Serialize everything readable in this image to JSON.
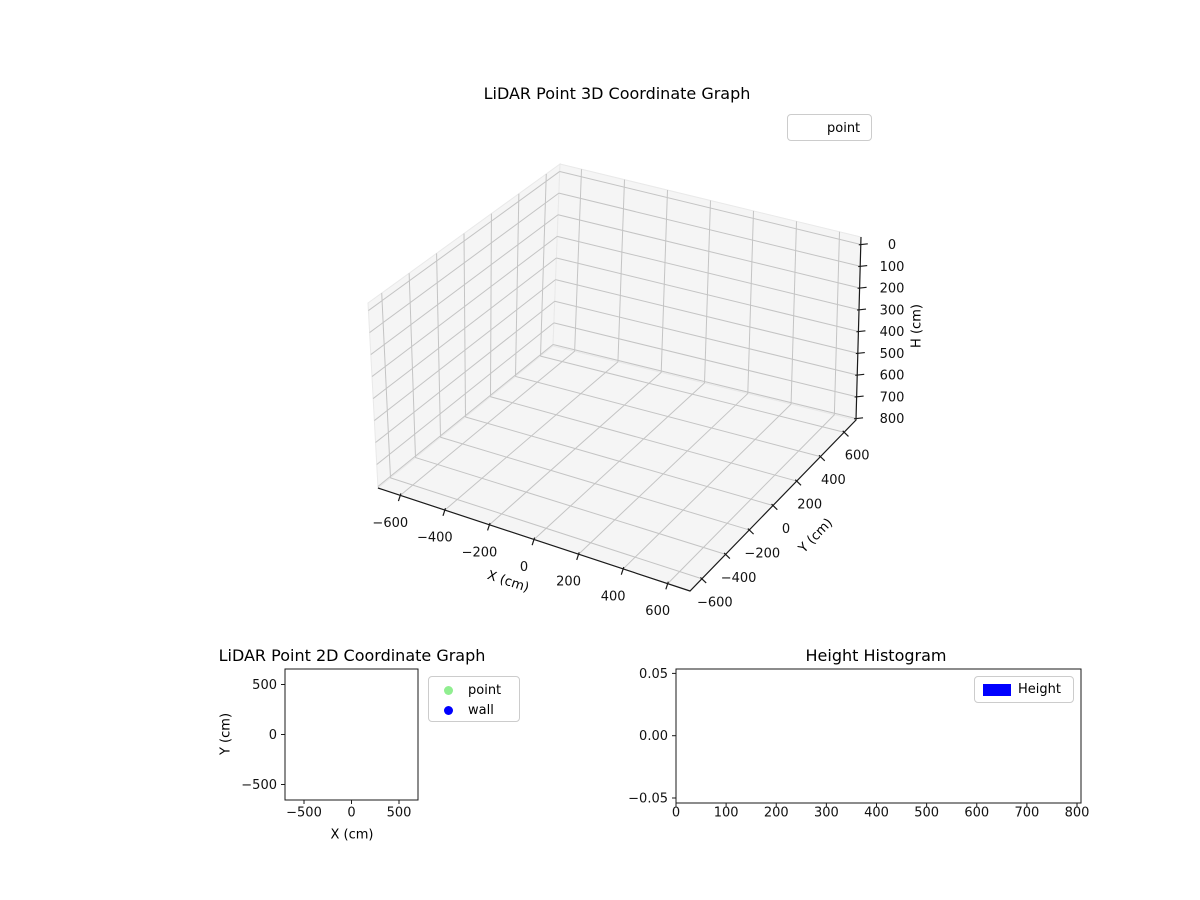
{
  "figure": {
    "background": "#ffffff"
  },
  "colors": {
    "point_marker": "#90ee90",
    "wall_marker": "#0000ff",
    "height_bar": "#0000ff",
    "pane_fill": "#f5f5f5",
    "grid_line": "#c4c4c4",
    "spine": "#1a1a1a"
  },
  "chart_data": [
    {
      "type": "scatter",
      "projection": "3d",
      "title": "LiDAR Point 3D Coordinate Graph",
      "xlabel": "X (cm)",
      "ylabel": "Y (cm)",
      "zlabel": "H (cm)",
      "xlim": [
        -700,
        700
      ],
      "ylim": [
        -700,
        700
      ],
      "zlim": [
        0,
        800
      ],
      "z_axis_inverted": true,
      "grid": true,
      "x_tick_labels": [
        "−600",
        "−400",
        "−200",
        "0",
        "200",
        "400",
        "600"
      ],
      "y_tick_labels": [
        "600",
        "400",
        "200",
        "0",
        "−200",
        "−400",
        "−600"
      ],
      "z_tick_labels": [
        "0",
        "100",
        "200",
        "300",
        "400",
        "500",
        "600",
        "700",
        "800"
      ],
      "legend": [
        {
          "label": "point",
          "marker_visible": false
        }
      ],
      "series": [
        {
          "name": "point",
          "points": []
        }
      ]
    },
    {
      "type": "scatter",
      "projection": "2d",
      "title": "LiDAR Point 2D Coordinate Graph",
      "xlabel": "X (cm)",
      "ylabel": "Y (cm)",
      "xlim": [
        -700,
        700
      ],
      "ylim": [
        -650,
        650
      ],
      "grid": false,
      "x_tick_labels": [
        "−500",
        "0",
        "500"
      ],
      "y_tick_labels": [
        "500",
        "0",
        "−500"
      ],
      "legend": [
        {
          "label": "point",
          "color": "#90ee90"
        },
        {
          "label": "wall",
          "color": "#0000ff"
        }
      ],
      "series": [
        {
          "name": "point",
          "color": "#90ee90",
          "points": []
        },
        {
          "name": "wall",
          "color": "#0000ff",
          "points": []
        }
      ]
    },
    {
      "type": "bar",
      "projection": "2d",
      "title": "Height Histogram",
      "xlabel": "",
      "ylabel": "",
      "xlim": [
        0,
        800
      ],
      "ylim": [
        -0.05,
        0.05
      ],
      "grid": false,
      "x_tick_labels": [
        "0",
        "100",
        "200",
        "300",
        "400",
        "500",
        "600",
        "700",
        "800"
      ],
      "y_tick_labels": [
        "0.05",
        "0.00",
        "−0.05"
      ],
      "legend": [
        {
          "label": "Height",
          "color": "#0000ff"
        }
      ],
      "categories": [],
      "values": []
    }
  ]
}
